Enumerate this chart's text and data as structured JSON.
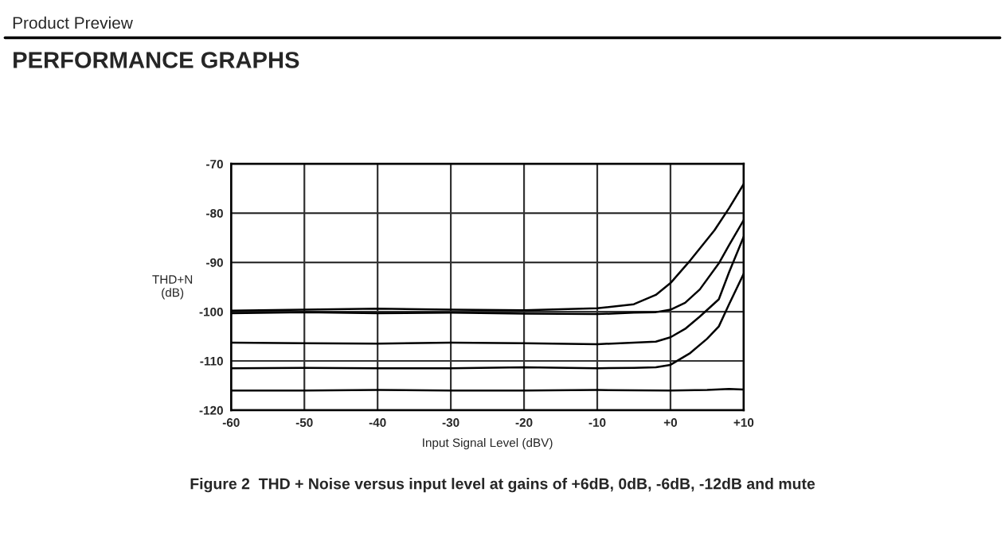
{
  "chart_data": {
    "type": "line",
    "xlabel": "Input Signal Level (dBV)",
    "ylabel": "THD+N\n(dB)",
    "annotations": [
      "Product Preview",
      "PERFORMANCE GRAPHS",
      "Figure 2  THD + Noise versus input level at gains of +6dB, 0dB, -6dB, -12dB and mute"
    ],
    "xlim": [
      -60,
      10
    ],
    "xticks": [
      -60,
      -50,
      -40,
      -30,
      -20,
      -10,
      {
        "value": 0,
        "label": "+0"
      },
      {
        "value": 10,
        "label": "+10"
      }
    ],
    "ylim": [
      -120,
      -70
    ],
    "yticks": [
      -70,
      -80,
      -90,
      -100,
      -110,
      -120
    ],
    "grid": true,
    "legend": false,
    "marker": "none",
    "line_style": "solid",
    "series": [
      {
        "color": "#000000",
        "x": [
          -60,
          -50,
          -40,
          -30,
          -20,
          -10,
          -5,
          -2,
          0,
          2.7,
          6,
          8,
          10
        ],
        "values": [
          -99.8,
          -99.6,
          -99.4,
          -99.6,
          -99.7,
          -99.3,
          -98.5,
          -96.6,
          -94.2,
          -89.6,
          -83.5,
          -79,
          -74.1
        ]
      },
      {
        "color": "#000000",
        "x": [
          -60,
          -50,
          -40,
          -30,
          -20,
          -10,
          -5,
          -2,
          0,
          2,
          4,
          6.6,
          8,
          10
        ],
        "values": [
          -100.3,
          -100.1,
          -100.3,
          -100.2,
          -100.4,
          -100.5,
          -100.2,
          -100.1,
          -99.6,
          -98.2,
          -95.5,
          -90.2,
          -86.5,
          -81.4
        ]
      },
      {
        "color": "#000000",
        "x": [
          -60,
          -50,
          -40,
          -30,
          -20,
          -10,
          -5,
          -2,
          0,
          2,
          4,
          6.6,
          8,
          10
        ],
        "values": [
          -106.3,
          -106.4,
          -106.5,
          -106.3,
          -106.4,
          -106.6,
          -106.3,
          -106.1,
          -105.2,
          -103.5,
          -101,
          -97.5,
          -92,
          -84.8
        ]
      },
      {
        "color": "#000000",
        "x": [
          -60,
          -50,
          -40,
          -30,
          -20,
          -10,
          -5,
          -2,
          0,
          2.7,
          5,
          6.6,
          8,
          10
        ],
        "values": [
          -111.5,
          -111.4,
          -111.5,
          -111.5,
          -111.3,
          -111.5,
          -111.4,
          -111.3,
          -110.8,
          -108.4,
          -105.5,
          -103,
          -98.5,
          -92.3
        ]
      },
      {
        "color": "#000000",
        "x": [
          -60,
          -50,
          -40,
          -30,
          -20,
          -10,
          0,
          5,
          8,
          10
        ],
        "values": [
          -116.0,
          -116.0,
          -115.9,
          -116.0,
          -116.0,
          -115.9,
          -116.0,
          -115.9,
          -115.7,
          -115.8
        ]
      }
    ]
  }
}
